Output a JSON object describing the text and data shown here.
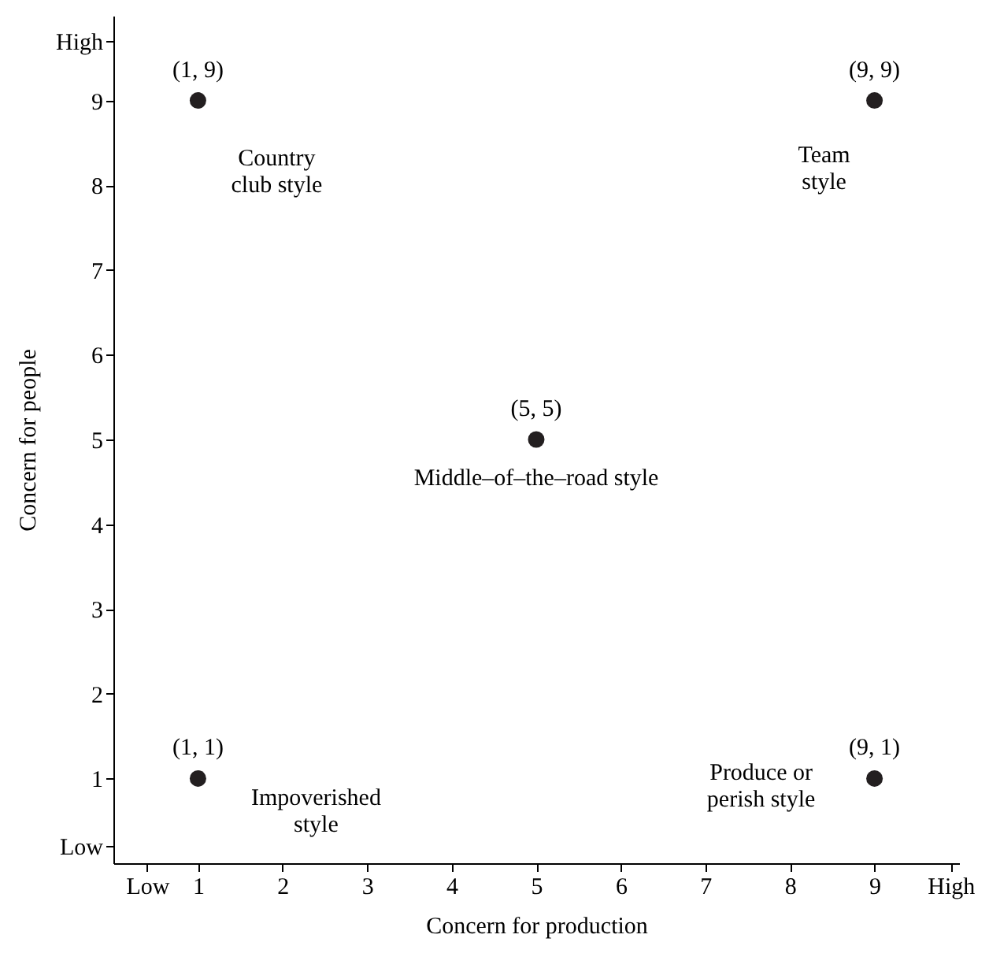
{
  "chart_data": {
    "type": "scatter",
    "xlabel": "Concern for production",
    "ylabel": "Concern for people",
    "x": [
      1,
      9,
      5,
      1,
      9
    ],
    "series": [
      {
        "color": "#231f20",
        "values": [
          9,
          9,
          5,
          1,
          1
        ],
        "value_labels": [
          "(1, 9)",
          "(9, 9)",
          "(5, 5)",
          "(1, 1)",
          "(9, 1)"
        ]
      }
    ],
    "marker": "circle",
    "grid": false,
    "xlim": [
      0,
      10
    ],
    "ylim": [
      0,
      10
    ],
    "xticks": [
      {
        "value": 0.4,
        "label": "Low"
      },
      1,
      2,
      3,
      4,
      5,
      6,
      7,
      8,
      9,
      {
        "value": 9.9,
        "label": "High"
      }
    ],
    "yticks": [
      {
        "value": 0.2,
        "label": "Low"
      },
      1,
      2,
      3,
      4,
      5,
      6,
      7,
      8,
      9,
      {
        "value": 9.7,
        "label": "High"
      }
    ],
    "annotations": [
      "Country\nclub style",
      "Team\nstyle",
      "Middle–of–the–road style",
      "Impoverished\nstyle",
      "Produce or\nperish style"
    ]
  }
}
